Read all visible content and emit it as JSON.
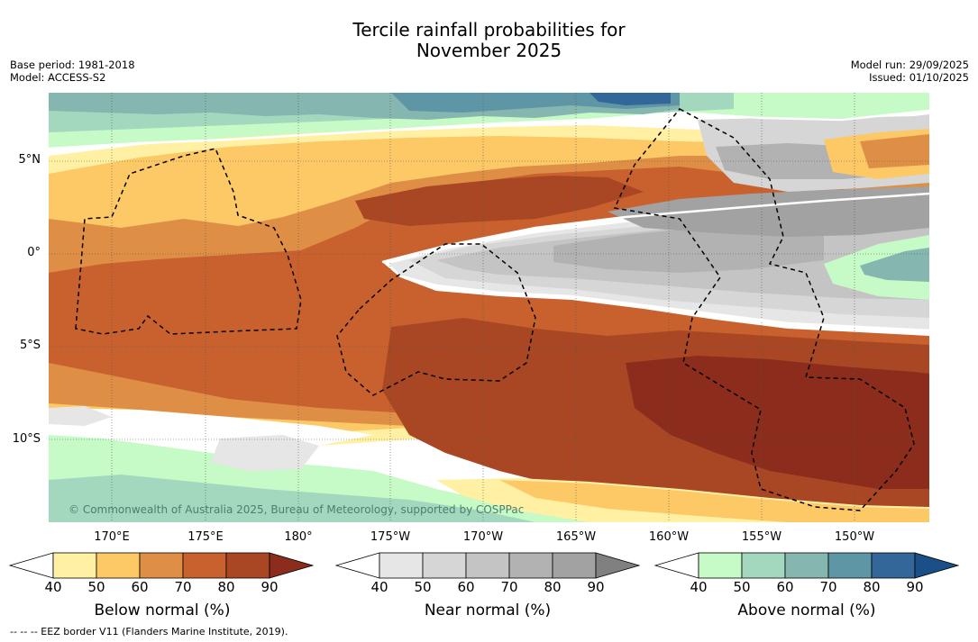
{
  "title_line1": "Tercile rainfall probabilities for",
  "title_line2": "November 2025",
  "base_period": "Base period: 1981-2018",
  "model": "Model: ACCESS-S2",
  "model_run": "Model run: 29/09/2025",
  "issued": "Issued: 01/10/2025",
  "copyright": "© Commonwealth of Australia 2025, Bureau of Meteorology, supported by COSPPac",
  "latitude_labels": [
    "5°N",
    "0°",
    "5°S",
    "10°S"
  ],
  "longitude_labels": [
    "170°E",
    "175°E",
    "180°",
    "175°W",
    "170°W",
    "165°W",
    "160°W",
    "155°W",
    "150°W"
  ],
  "colorbars": [
    {
      "title": "Below normal (%)",
      "ticks": [
        "40",
        "50",
        "60",
        "70",
        "80",
        "90"
      ],
      "colors": [
        "#ffffff",
        "#fff0a3",
        "#fdc966",
        "#df8f45",
        "#c9612f",
        "#a94725",
        "#8b2c1d"
      ]
    },
    {
      "title": "Near normal (%)",
      "ticks": [
        "40",
        "50",
        "60",
        "70",
        "80",
        "90"
      ],
      "colors": [
        "#ffffff",
        "#e6e6e6",
        "#d6d6d6",
        "#c4c4c4",
        "#b2b2b2",
        "#a2a2a2",
        "#808080"
      ]
    },
    {
      "title": "Above normal (%)",
      "ticks": [
        "40",
        "50",
        "60",
        "70",
        "80",
        "90"
      ],
      "colors": [
        "#ffffff",
        "#c6fac6",
        "#a4d8be",
        "#85b6b0",
        "#5e96a6",
        "#336699",
        "#1a4f87"
      ]
    }
  ],
  "footnote": "--  --  -- EEZ border V11 (Flanders Marine Institute, 2019)."
}
